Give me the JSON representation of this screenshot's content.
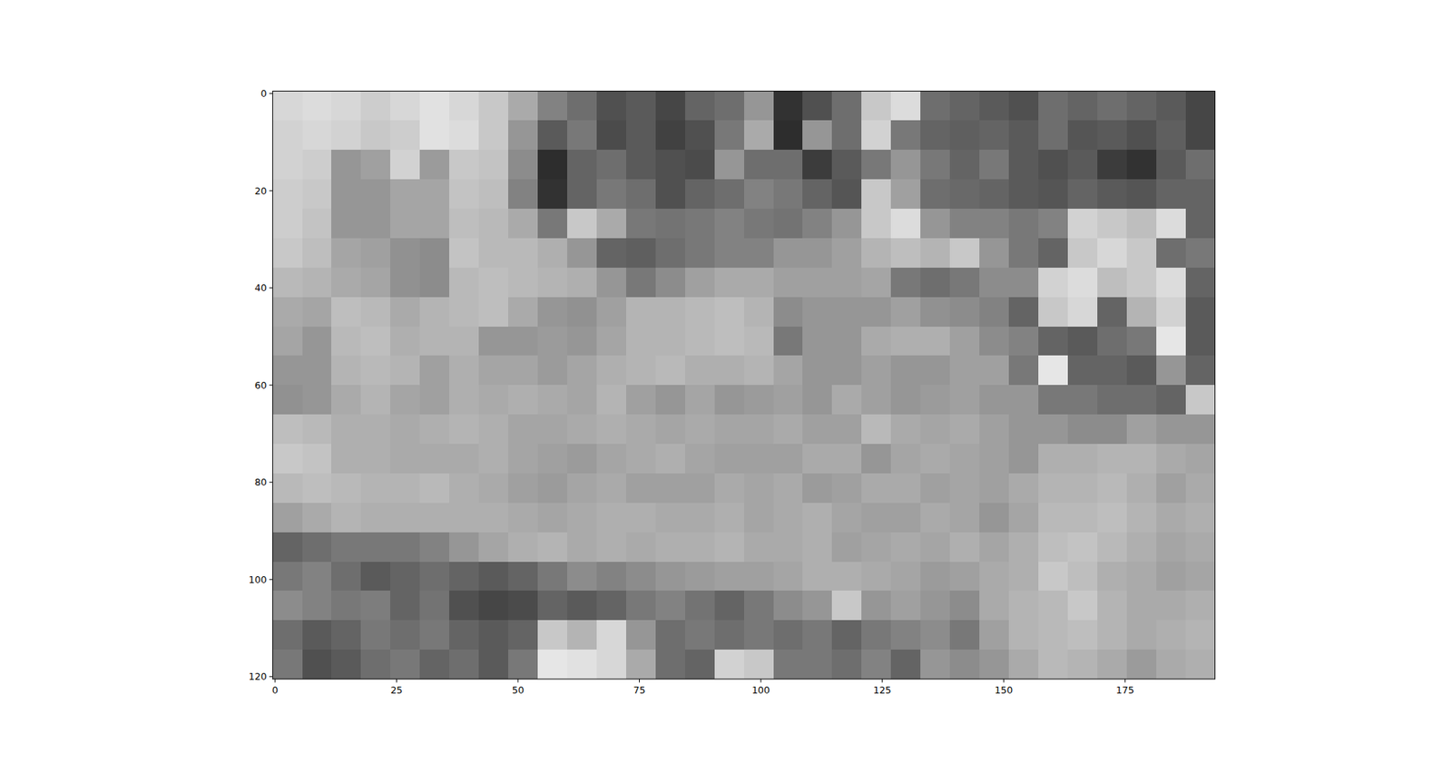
{
  "chart_data": {
    "type": "heatmap",
    "color": "gray",
    "xlim": [
      -0.5,
      193.5
    ],
    "ylim": [
      120.5,
      -0.5
    ],
    "xticks": [
      0,
      25,
      50,
      75,
      100,
      125,
      150,
      175
    ],
    "yticks": [
      0,
      20,
      40,
      60,
      80,
      100,
      120
    ],
    "clim": [
      0,
      255
    ],
    "cells": [
      [
        215,
        220,
        215,
        205,
        215,
        225,
        215,
        200,
        170,
        130,
        110,
        80,
        90,
        70,
        100,
        110,
        150,
        50,
        80,
        110,
        200,
        220,
        110,
        100,
        90,
        80,
        110,
        100,
        110,
        100,
        90,
        70
      ],
      [
        210,
        215,
        210,
        200,
        205,
        225,
        220,
        200,
        150,
        90,
        120,
        75,
        90,
        65,
        80,
        120,
        170,
        45,
        150,
        110,
        210,
        120,
        100,
        95,
        100,
        90,
        110,
        85,
        90,
        80,
        95,
        70
      ],
      [
        210,
        205,
        150,
        160,
        210,
        155,
        200,
        195,
        140,
        45,
        100,
        110,
        90,
        80,
        75,
        150,
        110,
        110,
        60,
        90,
        120,
        150,
        120,
        100,
        120,
        90,
        80,
        90,
        60,
        50,
        90,
        110
      ],
      [
        205,
        200,
        150,
        150,
        165,
        165,
        195,
        190,
        130,
        50,
        100,
        120,
        110,
        80,
        100,
        110,
        130,
        120,
        100,
        85,
        200,
        160,
        110,
        105,
        100,
        90,
        85,
        100,
        90,
        85,
        100,
        100
      ],
      [
        205,
        195,
        150,
        150,
        165,
        165,
        190,
        185,
        170,
        120,
        200,
        170,
        120,
        115,
        120,
        130,
        120,
        115,
        130,
        150,
        200,
        220,
        150,
        130,
        130,
        120,
        130,
        210,
        200,
        190,
        220,
        100
      ],
      [
        200,
        190,
        165,
        160,
        145,
        140,
        195,
        185,
        185,
        175,
        150,
        100,
        95,
        110,
        120,
        130,
        130,
        150,
        150,
        160,
        180,
        190,
        180,
        200,
        150,
        120,
        100,
        200,
        215,
        200,
        110,
        120
      ],
      [
        185,
        180,
        170,
        165,
        145,
        140,
        185,
        190,
        185,
        180,
        175,
        150,
        120,
        140,
        160,
        170,
        170,
        160,
        160,
        160,
        165,
        120,
        110,
        120,
        140,
        140,
        210,
        220,
        190,
        200,
        220,
        100
      ],
      [
        170,
        165,
        190,
        185,
        170,
        180,
        185,
        190,
        170,
        150,
        145,
        160,
        180,
        180,
        185,
        190,
        180,
        140,
        150,
        150,
        150,
        160,
        145,
        140,
        130,
        100,
        200,
        215,
        100,
        180,
        210,
        90
      ],
      [
        165,
        150,
        185,
        190,
        175,
        180,
        180,
        150,
        150,
        155,
        150,
        165,
        180,
        180,
        185,
        190,
        185,
        120,
        150,
        150,
        170,
        175,
        175,
        160,
        140,
        130,
        100,
        90,
        110,
        120,
        230,
        90
      ],
      [
        150,
        150,
        180,
        185,
        180,
        160,
        175,
        165,
        165,
        155,
        165,
        175,
        180,
        185,
        175,
        175,
        180,
        165,
        150,
        150,
        160,
        150,
        150,
        160,
        160,
        120,
        230,
        100,
        100,
        90,
        150,
        100
      ],
      [
        145,
        150,
        170,
        180,
        165,
        160,
        175,
        170,
        175,
        170,
        165,
        180,
        160,
        150,
        165,
        150,
        155,
        160,
        150,
        170,
        160,
        150,
        155,
        160,
        150,
        150,
        120,
        120,
        110,
        110,
        100,
        200
      ],
      [
        190,
        185,
        175,
        175,
        170,
        175,
        180,
        175,
        165,
        165,
        170,
        175,
        170,
        165,
        170,
        165,
        165,
        170,
        160,
        160,
        185,
        170,
        165,
        170,
        160,
        150,
        150,
        140,
        140,
        160,
        150,
        150
      ],
      [
        200,
        195,
        175,
        175,
        170,
        170,
        170,
        175,
        165,
        160,
        155,
        165,
        170,
        175,
        165,
        160,
        160,
        160,
        170,
        170,
        150,
        165,
        170,
        165,
        160,
        150,
        175,
        175,
        180,
        180,
        170,
        165
      ],
      [
        185,
        190,
        185,
        180,
        180,
        185,
        175,
        170,
        160,
        155,
        165,
        170,
        160,
        160,
        160,
        170,
        165,
        170,
        155,
        160,
        170,
        170,
        160,
        165,
        160,
        170,
        180,
        180,
        185,
        175,
        160,
        170
      ],
      [
        160,
        170,
        180,
        175,
        175,
        175,
        175,
        175,
        170,
        165,
        170,
        175,
        175,
        170,
        170,
        175,
        165,
        170,
        175,
        165,
        160,
        160,
        170,
        165,
        150,
        165,
        185,
        185,
        190,
        180,
        170,
        175
      ],
      [
        100,
        110,
        120,
        120,
        120,
        130,
        150,
        165,
        175,
        180,
        170,
        175,
        170,
        175,
        175,
        180,
        170,
        170,
        175,
        160,
        165,
        170,
        165,
        175,
        165,
        175,
        190,
        195,
        185,
        175,
        165,
        170
      ],
      [
        120,
        130,
        110,
        90,
        100,
        110,
        100,
        90,
        100,
        120,
        140,
        130,
        140,
        150,
        155,
        160,
        160,
        165,
        175,
        175,
        170,
        165,
        155,
        160,
        170,
        175,
        200,
        190,
        175,
        170,
        160,
        165
      ],
      [
        140,
        130,
        120,
        125,
        100,
        115,
        80,
        70,
        75,
        100,
        90,
        100,
        120,
        130,
        115,
        100,
        120,
        140,
        150,
        200,
        150,
        160,
        150,
        140,
        170,
        180,
        185,
        200,
        180,
        170,
        170,
        175
      ],
      [
        110,
        90,
        100,
        120,
        110,
        120,
        100,
        90,
        100,
        200,
        180,
        215,
        150,
        110,
        120,
        110,
        120,
        110,
        120,
        100,
        120,
        130,
        140,
        120,
        160,
        180,
        185,
        190,
        180,
        170,
        175,
        180
      ],
      [
        120,
        80,
        90,
        110,
        120,
        100,
        110,
        90,
        120,
        230,
        225,
        215,
        170,
        110,
        100,
        210,
        200,
        120,
        120,
        110,
        130,
        100,
        150,
        140,
        150,
        170,
        185,
        180,
        170,
        155,
        170,
        175
      ]
    ]
  }
}
